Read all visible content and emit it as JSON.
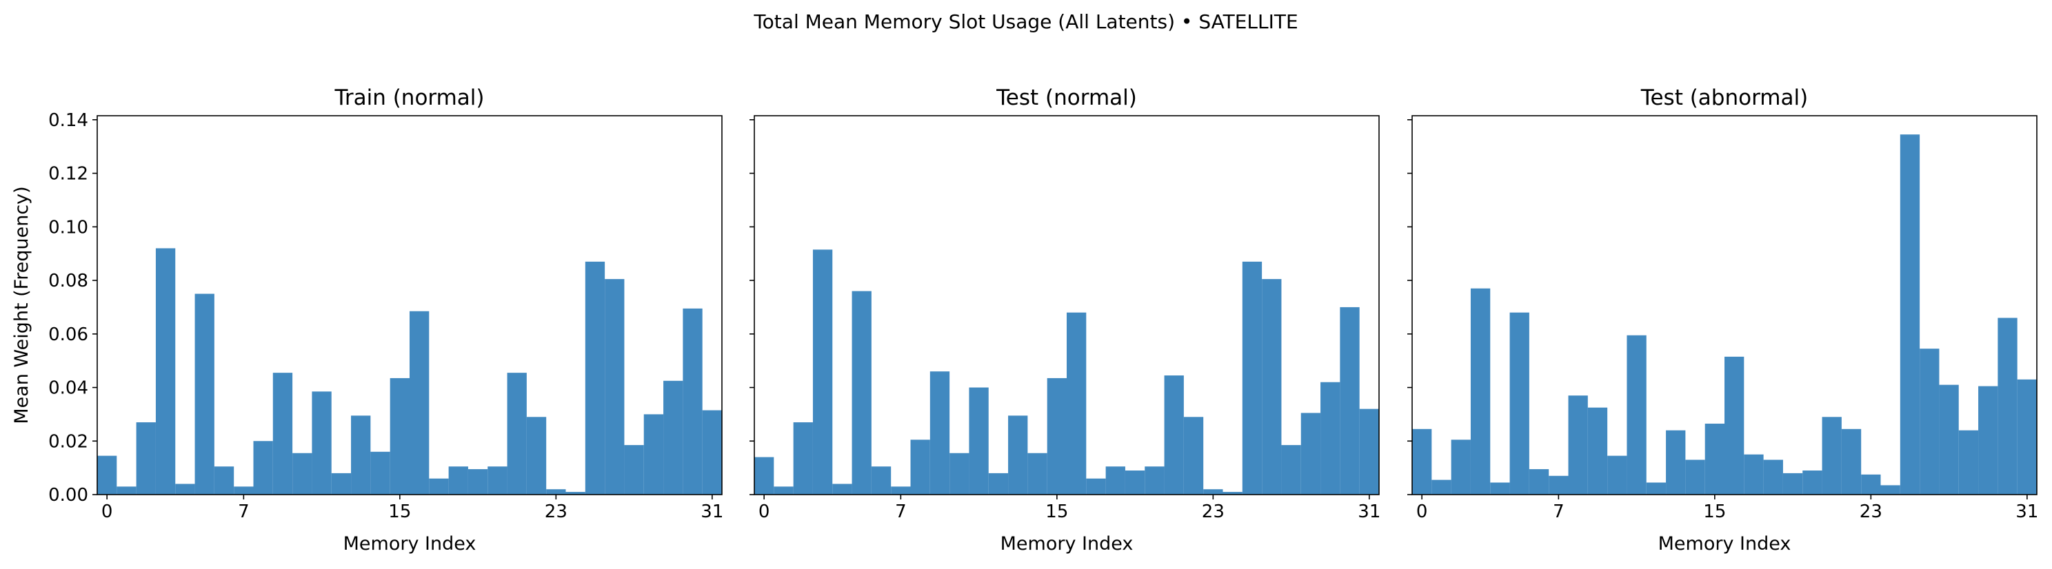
{
  "suptitle": "Total Mean Memory Slot Usage (All Latents) • SATELLITE",
  "colors": {
    "bar": "#4189c0",
    "axes": "#000000",
    "background": "#ffffff"
  },
  "chart_data": [
    {
      "type": "bar",
      "title": "Train (normal)",
      "xlabel": "Memory Index",
      "ylabel": "Mean Weight (Frequency)",
      "ylim": [
        0,
        0.1415
      ],
      "xlim": [
        -0.5,
        31.5
      ],
      "xticks": [
        0,
        7,
        15,
        23,
        31
      ],
      "yticks": [
        "0.00",
        "0.02",
        "0.04",
        "0.06",
        "0.08",
        "0.10",
        "0.12",
        "0.14"
      ],
      "grid": false,
      "categories": [
        0,
        1,
        2,
        3,
        4,
        5,
        6,
        7,
        8,
        9,
        10,
        11,
        12,
        13,
        14,
        15,
        16,
        17,
        18,
        19,
        20,
        21,
        22,
        23,
        24,
        25,
        26,
        27,
        28,
        29,
        30,
        31
      ],
      "values": [
        0.0145,
        0.003,
        0.027,
        0.092,
        0.004,
        0.075,
        0.0105,
        0.003,
        0.02,
        0.0455,
        0.0155,
        0.0385,
        0.008,
        0.0295,
        0.016,
        0.0435,
        0.0685,
        0.006,
        0.0105,
        0.0095,
        0.0105,
        0.0455,
        0.029,
        0.002,
        0.001,
        0.087,
        0.0805,
        0.0185,
        0.03,
        0.0425,
        0.0695,
        0.0315
      ]
    },
    {
      "type": "bar",
      "title": "Test (normal)",
      "xlabel": "Memory Index",
      "ylabel": "",
      "ylim": [
        0,
        0.1415
      ],
      "xlim": [
        -0.5,
        31.5
      ],
      "xticks": [
        0,
        7,
        15,
        23,
        31
      ],
      "grid": false,
      "categories": [
        0,
        1,
        2,
        3,
        4,
        5,
        6,
        7,
        8,
        9,
        10,
        11,
        12,
        13,
        14,
        15,
        16,
        17,
        18,
        19,
        20,
        21,
        22,
        23,
        24,
        25,
        26,
        27,
        28,
        29,
        30,
        31
      ],
      "values": [
        0.014,
        0.003,
        0.027,
        0.0915,
        0.004,
        0.076,
        0.0105,
        0.003,
        0.0205,
        0.046,
        0.0155,
        0.04,
        0.008,
        0.0295,
        0.0155,
        0.0435,
        0.068,
        0.006,
        0.0105,
        0.009,
        0.0105,
        0.0445,
        0.029,
        0.002,
        0.001,
        0.087,
        0.0805,
        0.0185,
        0.0305,
        0.042,
        0.07,
        0.032
      ]
    },
    {
      "type": "bar",
      "title": "Test (abnormal)",
      "xlabel": "Memory Index",
      "ylabel": "",
      "ylim": [
        0,
        0.1415
      ],
      "xlim": [
        -0.5,
        31.5
      ],
      "xticks": [
        0,
        7,
        15,
        23,
        31
      ],
      "grid": false,
      "categories": [
        0,
        1,
        2,
        3,
        4,
        5,
        6,
        7,
        8,
        9,
        10,
        11,
        12,
        13,
        14,
        15,
        16,
        17,
        18,
        19,
        20,
        21,
        22,
        23,
        24,
        25,
        26,
        27,
        28,
        29,
        30,
        31
      ],
      "values": [
        0.0245,
        0.0055,
        0.0205,
        0.077,
        0.0045,
        0.068,
        0.0095,
        0.007,
        0.037,
        0.0325,
        0.0145,
        0.0595,
        0.0045,
        0.024,
        0.013,
        0.0265,
        0.0515,
        0.015,
        0.013,
        0.008,
        0.009,
        0.029,
        0.0245,
        0.0075,
        0.0035,
        0.1345,
        0.0545,
        0.041,
        0.024,
        0.0405,
        0.066,
        0.043
      ]
    }
  ]
}
